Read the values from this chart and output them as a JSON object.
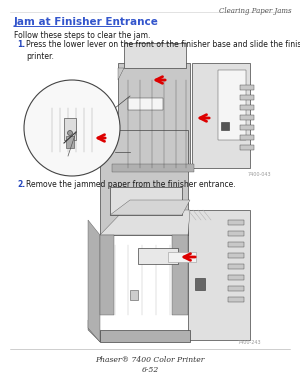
{
  "bg_color": "#ffffff",
  "header_right_text": "Clearing Paper Jams",
  "heading_text": "Jam at Finisher Entrance",
  "heading_color": "#3355cc",
  "intro_text": "Follow these steps to clear the jam.",
  "step1_num": "1.",
  "step1_text": "Press the lower lever on the front of the finisher base and slide the finisher away from the\nprinter.",
  "step2_num": "2.",
  "step2_text": "Remove the jammed paper from the finisher entrance.",
  "footer_line1": "Phaser® 7400 Color Printer",
  "footer_line2": "6-52",
  "label1": "7400-043",
  "label2": "7400-243",
  "text_color": "#1a1a1a",
  "step_color": "#2244bb",
  "footer_color": "#333333",
  "header_color": "#555555",
  "line_color": "#888888",
  "edge_color": "#444444",
  "fill_light": "#e0e0e0",
  "fill_mid": "#c8c8c8",
  "fill_dark": "#b0b0b0",
  "fill_white": "#f5f5f5",
  "red_arrow": "#dd0000",
  "figsize": [
    3.0,
    3.88
  ],
  "dpi": 100
}
